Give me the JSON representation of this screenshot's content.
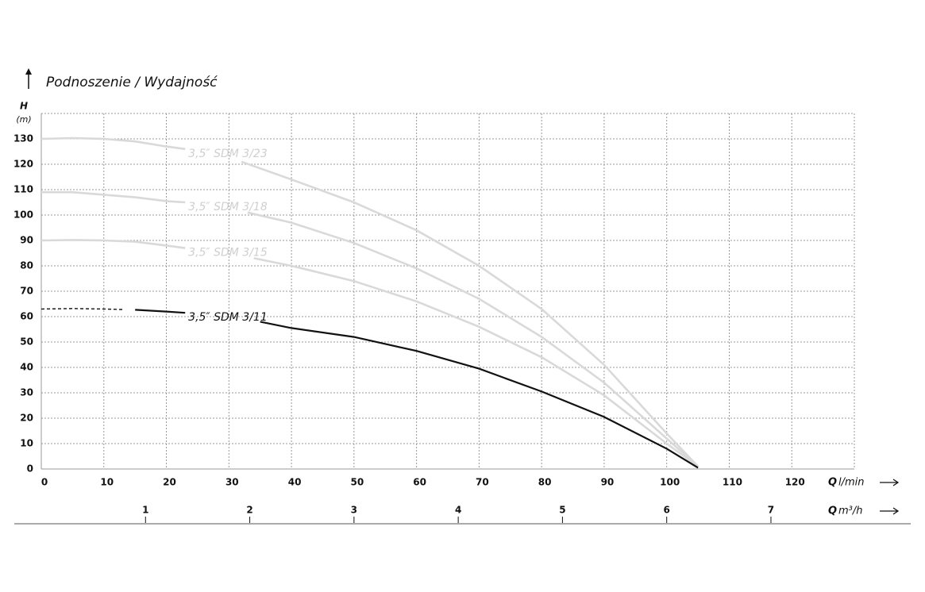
{
  "chart_data": {
    "type": "line",
    "title": "Podnoszenie / Wydajność",
    "y_label_symbol": "H",
    "y_label_unit": "(m)",
    "x_label_symbol": "Q",
    "x_label_unit": "l/min",
    "x2_label_symbol": "Q",
    "x2_label_unit": "m³/h",
    "xlim": [
      0,
      130
    ],
    "xticks": [
      0,
      10,
      20,
      30,
      40,
      50,
      60,
      70,
      80,
      90,
      100,
      110,
      120
    ],
    "ylim": [
      0,
      140
    ],
    "yticks": [
      0,
      10,
      20,
      30,
      40,
      50,
      60,
      70,
      80,
      90,
      100,
      110,
      120,
      130
    ],
    "x2lim": [
      0,
      7.8
    ],
    "x2ticks": [
      1,
      2,
      3,
      4,
      5,
      6,
      7
    ],
    "grid": true,
    "series": [
      {
        "name": "3,5″ SDM 3/23",
        "color": "#d9d9d9",
        "dashed_start": false,
        "x": [
          0,
          5,
          10,
          15,
          20,
          23,
          27,
          32,
          40,
          50,
          60,
          70,
          80,
          90,
          100,
          105
        ],
        "values": [
          130,
          130.3,
          130,
          129,
          127,
          126,
          null,
          121,
          114,
          105,
          94,
          80,
          63,
          41,
          14,
          1
        ]
      },
      {
        "name": "3,5″ SDM 3/18",
        "color": "#d9d9d9",
        "dashed_start": false,
        "x": [
          0,
          5,
          10,
          15,
          20,
          23,
          28,
          33,
          40,
          50,
          60,
          70,
          80,
          90,
          100,
          105
        ],
        "values": [
          109,
          109,
          108,
          107,
          105.5,
          105,
          null,
          101,
          97,
          89,
          79,
          67,
          52,
          34,
          12,
          1
        ]
      },
      {
        "name": "3,5″ SDM 3/15",
        "color": "#d9d9d9",
        "dashed_start": false,
        "x": [
          0,
          5,
          10,
          15,
          20,
          23,
          28,
          34,
          40,
          50,
          60,
          70,
          80,
          90,
          100,
          105
        ],
        "values": [
          90,
          90.2,
          90,
          89.5,
          88,
          87,
          null,
          83,
          80,
          74,
          66,
          56,
          44,
          29,
          10,
          1
        ]
      },
      {
        "name": "3,5″ SDM 3/11",
        "color": "#111111",
        "dashed_start": true,
        "x": [
          0,
          5,
          10,
          13,
          14,
          15,
          20,
          23,
          29,
          35,
          40,
          50,
          60,
          70,
          80,
          90,
          100,
          105
        ],
        "values": [
          63,
          63.2,
          63,
          62.8,
          null,
          62.7,
          62,
          61.5,
          null,
          58,
          55.5,
          52,
          46.5,
          39.5,
          30.5,
          20.5,
          8,
          0.5
        ]
      }
    ]
  }
}
